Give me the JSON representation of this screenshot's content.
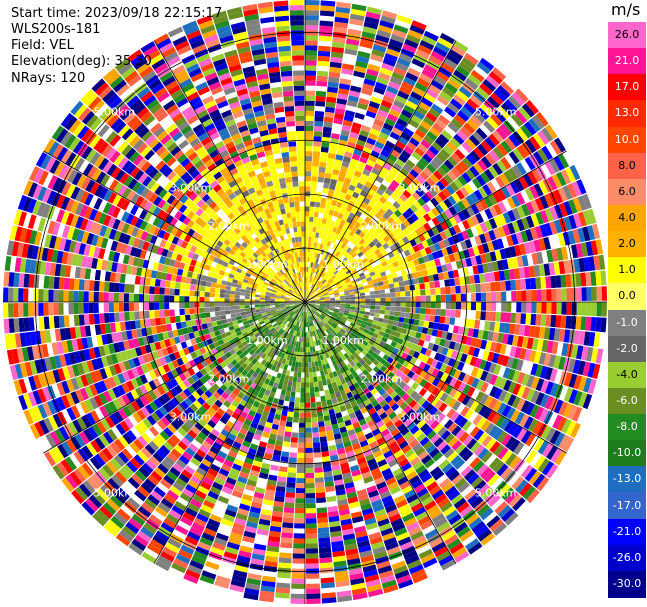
{
  "info": {
    "start_time": "Start time: 2023/09/18 22:15:17",
    "instrument": "WLS200s-181",
    "field": "Field: VEL",
    "elevation": "Elevation(deg): 35.30",
    "nrays": "NRays: 120"
  },
  "colorbar": {
    "unit": "m/s",
    "ticks": [
      "26.0",
      "21.0",
      "17.0",
      "13.0",
      "10.0",
      "8.0",
      "6.0",
      "4.0",
      "2.0",
      "1.0",
      "0.0",
      "-1.0",
      "-2.0",
      "-4.0",
      "-6.0",
      "-8.0",
      "-10.0",
      "-13.0",
      "-17.0",
      "-21.0",
      "-26.0",
      "-30.0"
    ],
    "colors": [
      "#ff66cc",
      "#ff1493",
      "#ff0000",
      "#ff2a00",
      "#ff4500",
      "#ff6347",
      "#ff8c69",
      "#ffa500",
      "#ffb000",
      "#ffff00",
      "#ffff66",
      "#808080",
      "#666666",
      "#9acd32",
      "#6b8e23",
      "#228b22",
      "#1e7b1e",
      "#1e6fbf",
      "#3366cc",
      "#0000ff",
      "#0000cd",
      "#00008b",
      "#000080",
      "#1a1a4d"
    ]
  },
  "chart_data": {
    "type": "heatmap",
    "title": "",
    "field": "VEL",
    "elevation_deg": 35.3,
    "n_rays": 120,
    "units": "m/s",
    "range_rings_km": [
      1.0,
      2.0,
      3.0,
      5.0
    ],
    "ring_labels": [
      "1.00km",
      "2.00km",
      "3.00km",
      "5.00km"
    ],
    "spoke_step_deg": 30,
    "grid": true,
    "color_scale_range": [
      -30.0,
      26.0
    ],
    "inner_region_pattern": {
      "north_half": "positive velocities 1.0 to 6.0 m/s (yellow/orange)",
      "south_half": "negative velocities -1.0 to -6.0 m/s (olive/green)",
      "near_zero_band": "0.0 m/s (gray) along east-west axis",
      "outer_region": "noise spanning full scale"
    }
  }
}
